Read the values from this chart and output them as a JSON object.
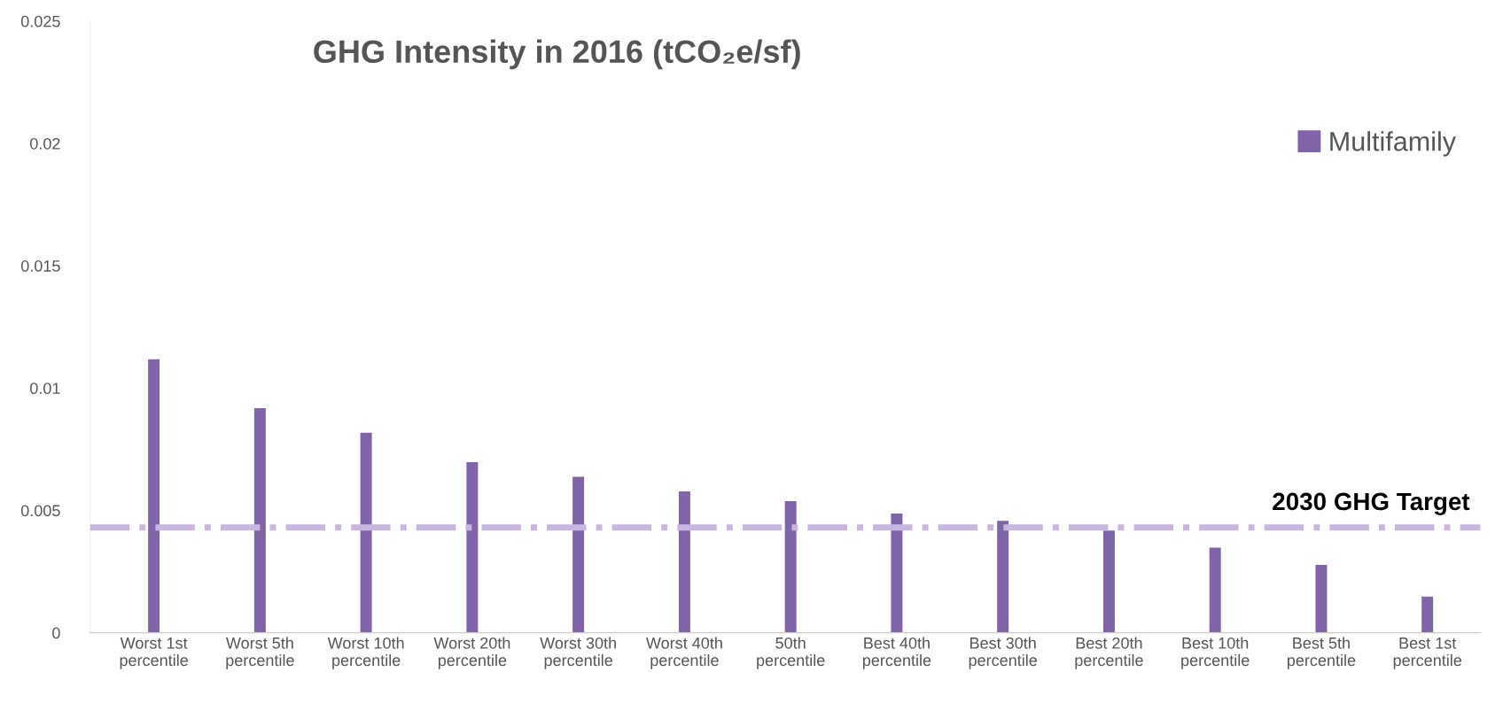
{
  "chart_data": {
    "type": "bar",
    "title": "GHG Intensity in 2016 (tCO₂e/sf)",
    "categories": [
      "Worst 1st\npercentile",
      "Worst 5th\npercentile",
      "Worst 10th\npercentile",
      "Worst 20th\npercentile",
      "Worst 30th\npercentile",
      "Worst 40th\npercentile",
      "50th\npercentile",
      "Best 40th\npercentile",
      "Best 30th\npercentile",
      "Best 20th\npercentile",
      "Best 10th\npercentile",
      "Best 5th\npercentile",
      "Best 1st\npercentile"
    ],
    "series": [
      {
        "name": "Multifamily",
        "color": "#8064a8",
        "values": [
          0.0112,
          0.0092,
          0.0082,
          0.007,
          0.0064,
          0.0058,
          0.0054,
          0.0049,
          0.0046,
          0.0042,
          0.0035,
          0.0028,
          0.0015
        ]
      }
    ],
    "ylim": [
      0,
      0.025
    ],
    "yticks": [
      0,
      0.005,
      0.01,
      0.015,
      0.02,
      0.025
    ],
    "ref_lines": [
      {
        "axis": "y",
        "value": 0.0043,
        "label": "2030 GHG Target",
        "color": "#c9b6e0",
        "line_style": "dashdot"
      }
    ],
    "grid": false,
    "legend": "top right"
  }
}
